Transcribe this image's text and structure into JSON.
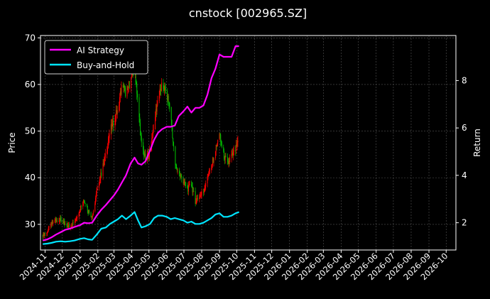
{
  "chart_data": {
    "type": "line",
    "title": "cnstock [002965.SZ]",
    "ylabel_left": "Price",
    "ylabel_right": "Return",
    "ylim_left": [
      24.5,
      70.5
    ],
    "ylim_right": [
      0.85,
      9.9
    ],
    "xlim": [
      "2024-10-24",
      "2026-10-18"
    ],
    "yticks_left": [
      30,
      40,
      50,
      60,
      70
    ],
    "yticks_right": [
      2,
      4,
      6,
      8
    ],
    "xticks": [
      "2024-11",
      "2024-12",
      "2025-01",
      "2025-02",
      "2025-03",
      "2025-04",
      "2025-05",
      "2025-06",
      "2025-07",
      "2025-08",
      "2025-09",
      "2025-10",
      "2025-11",
      "2025-12",
      "2026-01",
      "2026-02",
      "2026-03",
      "2026-04",
      "2026-05",
      "2026-06",
      "2026-07",
      "2026-08",
      "2026-09",
      "2026-10"
    ],
    "grid": true,
    "legend_position": "upper-left",
    "colors": {
      "up": "#ff0000",
      "down": "#00c000",
      "ai": "#ff00ff",
      "bh": "#00e5ff",
      "grid": "#555555",
      "axis": "#ffffff"
    },
    "legend": [
      {
        "name": "AI Strategy",
        "color": "#ff00ff"
      },
      {
        "name": "Buy-and-Hold",
        "color": "#00e5ff"
      }
    ],
    "price": [
      {
        "x": "2024-10-28",
        "y": 27.8
      },
      {
        "x": "2024-11-05",
        "y": 28.5
      },
      {
        "x": "2024-11-12",
        "y": 30.0
      },
      {
        "x": "2024-11-20",
        "y": 31.0
      },
      {
        "x": "2024-11-28",
        "y": 30.8
      },
      {
        "x": "2024-12-06",
        "y": 29.8
      },
      {
        "x": "2024-12-14",
        "y": 29.5
      },
      {
        "x": "2024-12-22",
        "y": 30.5
      },
      {
        "x": "2025-01-01",
        "y": 33.5
      },
      {
        "x": "2025-01-08",
        "y": 35.5
      },
      {
        "x": "2025-01-15",
        "y": 33.0
      },
      {
        "x": "2025-01-22",
        "y": 31.5
      },
      {
        "x": "2025-01-30",
        "y": 37.0
      },
      {
        "x": "2025-02-07",
        "y": 41.0
      },
      {
        "x": "2025-02-15",
        "y": 45.0
      },
      {
        "x": "2025-02-22",
        "y": 50.0
      },
      {
        "x": "2025-03-01",
        "y": 52.0
      },
      {
        "x": "2025-03-08",
        "y": 55.0
      },
      {
        "x": "2025-03-15",
        "y": 60.0
      },
      {
        "x": "2025-03-22",
        "y": 58.0
      },
      {
        "x": "2025-03-30",
        "y": 61.0
      },
      {
        "x": "2025-04-06",
        "y": 64.0
      },
      {
        "x": "2025-04-12",
        "y": 56.0
      },
      {
        "x": "2025-04-18",
        "y": 47.0
      },
      {
        "x": "2025-04-25",
        "y": 44.0
      },
      {
        "x": "2025-05-03",
        "y": 45.5
      },
      {
        "x": "2025-05-10",
        "y": 52.0
      },
      {
        "x": "2025-05-17",
        "y": 57.0
      },
      {
        "x": "2025-05-24",
        "y": 60.0
      },
      {
        "x": "2025-06-01",
        "y": 58.0
      },
      {
        "x": "2025-06-08",
        "y": 54.0
      },
      {
        "x": "2025-06-15",
        "y": 43.0
      },
      {
        "x": "2025-06-22",
        "y": 41.0
      },
      {
        "x": "2025-06-30",
        "y": 39.0
      },
      {
        "x": "2025-07-07",
        "y": 37.5
      },
      {
        "x": "2025-07-14",
        "y": 38.5
      },
      {
        "x": "2025-07-21",
        "y": 35.0
      },
      {
        "x": "2025-07-28",
        "y": 36.0
      },
      {
        "x": "2025-08-04",
        "y": 37.0
      },
      {
        "x": "2025-08-11",
        "y": 40.5
      },
      {
        "x": "2025-08-18",
        "y": 42.5
      },
      {
        "x": "2025-08-25",
        "y": 46.0
      },
      {
        "x": "2025-09-01",
        "y": 49.0
      },
      {
        "x": "2025-09-08",
        "y": 45.0
      },
      {
        "x": "2025-09-15",
        "y": 43.0
      },
      {
        "x": "2025-09-22",
        "y": 44.5
      },
      {
        "x": "2025-09-29",
        "y": 46.0
      },
      {
        "x": "2025-10-05",
        "y": 48.0
      }
    ],
    "series": [
      {
        "name": "AI Strategy",
        "axis": "right",
        "points": [
          {
            "x": "2024-10-28",
            "y": 1.25
          },
          {
            "x": "2024-11-05",
            "y": 1.3
          },
          {
            "x": "2024-11-12",
            "y": 1.38
          },
          {
            "x": "2024-11-20",
            "y": 1.5
          },
          {
            "x": "2024-11-28",
            "y": 1.6
          },
          {
            "x": "2024-12-06",
            "y": 1.7
          },
          {
            "x": "2024-12-14",
            "y": 1.75
          },
          {
            "x": "2024-12-22",
            "y": 1.82
          },
          {
            "x": "2025-01-01",
            "y": 1.9
          },
          {
            "x": "2025-01-08",
            "y": 2.0
          },
          {
            "x": "2025-01-15",
            "y": 1.98
          },
          {
            "x": "2025-01-22",
            "y": 2.0
          },
          {
            "x": "2025-01-30",
            "y": 2.3
          },
          {
            "x": "2025-02-07",
            "y": 2.55
          },
          {
            "x": "2025-02-15",
            "y": 2.75
          },
          {
            "x": "2025-02-22",
            "y": 2.95
          },
          {
            "x": "2025-03-01",
            "y": 3.15
          },
          {
            "x": "2025-03-08",
            "y": 3.4
          },
          {
            "x": "2025-03-15",
            "y": 3.7
          },
          {
            "x": "2025-03-22",
            "y": 4.0
          },
          {
            "x": "2025-03-30",
            "y": 4.5
          },
          {
            "x": "2025-04-06",
            "y": 4.75
          },
          {
            "x": "2025-04-12",
            "y": 4.5
          },
          {
            "x": "2025-04-18",
            "y": 4.45
          },
          {
            "x": "2025-04-25",
            "y": 4.6
          },
          {
            "x": "2025-05-03",
            "y": 5.05
          },
          {
            "x": "2025-05-10",
            "y": 5.5
          },
          {
            "x": "2025-05-17",
            "y": 5.8
          },
          {
            "x": "2025-05-24",
            "y": 5.95
          },
          {
            "x": "2025-06-01",
            "y": 6.05
          },
          {
            "x": "2025-06-08",
            "y": 6.05
          },
          {
            "x": "2025-06-15",
            "y": 6.1
          },
          {
            "x": "2025-06-22",
            "y": 6.5
          },
          {
            "x": "2025-06-30",
            "y": 6.7
          },
          {
            "x": "2025-07-07",
            "y": 6.9
          },
          {
            "x": "2025-07-14",
            "y": 6.65
          },
          {
            "x": "2025-07-21",
            "y": 6.85
          },
          {
            "x": "2025-07-28",
            "y": 6.85
          },
          {
            "x": "2025-08-04",
            "y": 6.95
          },
          {
            "x": "2025-08-11",
            "y": 7.4
          },
          {
            "x": "2025-08-18",
            "y": 8.1
          },
          {
            "x": "2025-08-25",
            "y": 8.5
          },
          {
            "x": "2025-09-01",
            "y": 9.1
          },
          {
            "x": "2025-09-08",
            "y": 9.0
          },
          {
            "x": "2025-09-15",
            "y": 9.0
          },
          {
            "x": "2025-09-22",
            "y": 9.0
          },
          {
            "x": "2025-09-29",
            "y": 9.45
          },
          {
            "x": "2025-10-05",
            "y": 9.45
          }
        ]
      },
      {
        "name": "Buy-and-Hold",
        "axis": "right",
        "points": [
          {
            "x": "2024-10-28",
            "y": 1.1
          },
          {
            "x": "2024-11-05",
            "y": 1.12
          },
          {
            "x": "2024-11-12",
            "y": 1.15
          },
          {
            "x": "2024-11-20",
            "y": 1.2
          },
          {
            "x": "2024-11-28",
            "y": 1.22
          },
          {
            "x": "2024-12-06",
            "y": 1.2
          },
          {
            "x": "2024-12-14",
            "y": 1.22
          },
          {
            "x": "2024-12-22",
            "y": 1.25
          },
          {
            "x": "2025-01-01",
            "y": 1.32
          },
          {
            "x": "2025-01-08",
            "y": 1.35
          },
          {
            "x": "2025-01-15",
            "y": 1.3
          },
          {
            "x": "2025-01-22",
            "y": 1.28
          },
          {
            "x": "2025-01-30",
            "y": 1.5
          },
          {
            "x": "2025-02-07",
            "y": 1.75
          },
          {
            "x": "2025-02-15",
            "y": 1.8
          },
          {
            "x": "2025-02-22",
            "y": 1.95
          },
          {
            "x": "2025-03-01",
            "y": 2.05
          },
          {
            "x": "2025-03-08",
            "y": 2.15
          },
          {
            "x": "2025-03-15",
            "y": 2.3
          },
          {
            "x": "2025-03-22",
            "y": 2.15
          },
          {
            "x": "2025-03-30",
            "y": 2.3
          },
          {
            "x": "2025-04-06",
            "y": 2.45
          },
          {
            "x": "2025-04-12",
            "y": 2.1
          },
          {
            "x": "2025-04-18",
            "y": 1.8
          },
          {
            "x": "2025-04-25",
            "y": 1.85
          },
          {
            "x": "2025-05-03",
            "y": 1.95
          },
          {
            "x": "2025-05-10",
            "y": 2.2
          },
          {
            "x": "2025-05-17",
            "y": 2.3
          },
          {
            "x": "2025-05-24",
            "y": 2.3
          },
          {
            "x": "2025-06-01",
            "y": 2.25
          },
          {
            "x": "2025-06-08",
            "y": 2.15
          },
          {
            "x": "2025-06-15",
            "y": 2.2
          },
          {
            "x": "2025-06-22",
            "y": 2.15
          },
          {
            "x": "2025-06-30",
            "y": 2.1
          },
          {
            "x": "2025-07-07",
            "y": 2.0
          },
          {
            "x": "2025-07-14",
            "y": 2.05
          },
          {
            "x": "2025-07-21",
            "y": 1.95
          },
          {
            "x": "2025-07-28",
            "y": 1.95
          },
          {
            "x": "2025-08-04",
            "y": 2.0
          },
          {
            "x": "2025-08-11",
            "y": 2.1
          },
          {
            "x": "2025-08-18",
            "y": 2.2
          },
          {
            "x": "2025-08-25",
            "y": 2.35
          },
          {
            "x": "2025-09-01",
            "y": 2.4
          },
          {
            "x": "2025-09-08",
            "y": 2.25
          },
          {
            "x": "2025-09-15",
            "y": 2.25
          },
          {
            "x": "2025-09-22",
            "y": 2.3
          },
          {
            "x": "2025-09-29",
            "y": 2.4
          },
          {
            "x": "2025-10-05",
            "y": 2.45
          }
        ]
      }
    ]
  }
}
